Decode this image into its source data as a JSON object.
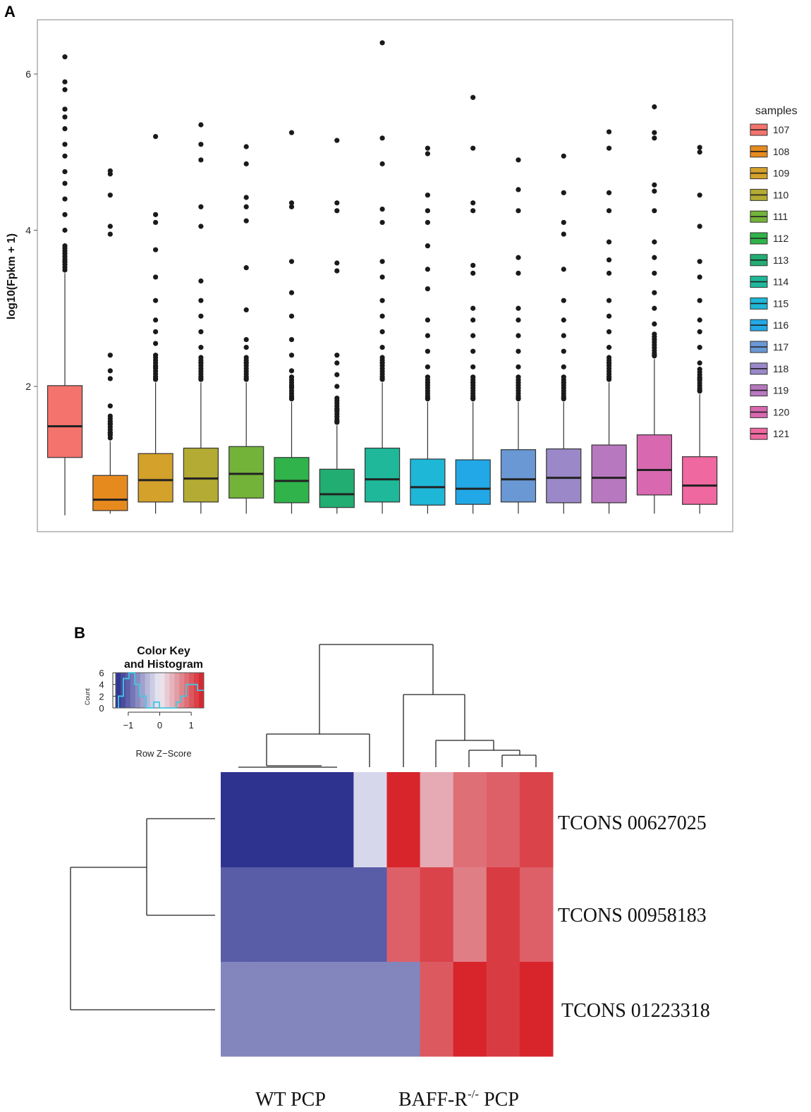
{
  "panels": {
    "a": "A",
    "b": "B"
  },
  "chart_data": [
    {
      "type": "box",
      "ylabel": "log10(Fpkm + 1)",
      "ylim": [
        0.2,
        6.6
      ],
      "yticks": [
        2,
        4,
        6
      ],
      "legend_title": "samples",
      "samples": [
        {
          "name": "107",
          "color": "#f4736c",
          "q1": 1.09,
          "median": 1.49,
          "q3": 2.01,
          "wlo": 0.35,
          "whi": 3.45,
          "outliers": [
            3.6,
            3.8,
            4.0,
            4.2,
            4.4,
            4.6,
            4.75,
            4.95,
            5.1,
            5.3,
            5.45,
            5.55,
            5.8,
            5.9,
            6.22
          ]
        },
        {
          "name": "108",
          "color": "#e78a1e",
          "q1": 0.41,
          "median": 0.55,
          "q3": 0.86,
          "wlo": 0.37,
          "whi": 1.3,
          "outliers": [
            1.4,
            1.52,
            1.75,
            2.1,
            2.2,
            2.4,
            3.95,
            4.05,
            4.45,
            4.72,
            4.76
          ]
        },
        {
          "name": "109",
          "color": "#d4a12a",
          "q1": 0.52,
          "median": 0.8,
          "q3": 1.14,
          "wlo": 0.37,
          "whi": 2.05,
          "outliers": [
            2.1,
            2.25,
            2.4,
            2.55,
            2.7,
            2.85,
            3.1,
            3.4,
            3.75,
            4.1,
            4.2,
            5.2
          ]
        },
        {
          "name": "110",
          "color": "#b3ab33",
          "q1": 0.52,
          "median": 0.82,
          "q3": 1.21,
          "wlo": 0.37,
          "whi": 2.05,
          "outliers": [
            2.1,
            2.3,
            2.5,
            2.7,
            2.9,
            3.1,
            3.35,
            4.05,
            4.3,
            4.9,
            5.1,
            5.35
          ]
        },
        {
          "name": "111",
          "color": "#73b33a",
          "q1": 0.57,
          "median": 0.88,
          "q3": 1.23,
          "wlo": 0.37,
          "whi": 2.05,
          "outliers": [
            2.1,
            2.3,
            2.5,
            2.6,
            2.98,
            3.52,
            4.12,
            4.3,
            4.42,
            4.85,
            5.07
          ]
        },
        {
          "name": "112",
          "color": "#2fb34a",
          "q1": 0.51,
          "median": 0.79,
          "q3": 1.09,
          "wlo": 0.37,
          "whi": 1.8,
          "outliers": [
            1.85,
            2.0,
            2.2,
            2.4,
            2.6,
            2.9,
            3.2,
            3.6,
            4.3,
            4.35,
            5.25
          ]
        },
        {
          "name": "113",
          "color": "#22ad73",
          "q1": 0.45,
          "median": 0.62,
          "q3": 0.94,
          "wlo": 0.37,
          "whi": 1.5,
          "outliers": [
            1.55,
            1.7,
            1.85,
            2.0,
            2.15,
            2.3,
            2.4,
            3.48,
            3.58,
            4.25,
            4.35,
            5.15
          ]
        },
        {
          "name": "114",
          "color": "#1fb89a",
          "q1": 0.52,
          "median": 0.81,
          "q3": 1.21,
          "wlo": 0.37,
          "whi": 2.05,
          "outliers": [
            2.1,
            2.3,
            2.5,
            2.7,
            2.9,
            3.1,
            3.4,
            3.6,
            4.1,
            4.27,
            4.85,
            5.18,
            6.4
          ]
        },
        {
          "name": "115",
          "color": "#1fb7d8",
          "q1": 0.48,
          "median": 0.71,
          "q3": 1.07,
          "wlo": 0.37,
          "whi": 1.8,
          "outliers": [
            1.85,
            2.05,
            2.25,
            2.45,
            2.65,
            2.85,
            3.25,
            3.5,
            3.8,
            4.1,
            4.25,
            4.45,
            4.98,
            5.05
          ]
        },
        {
          "name": "116",
          "color": "#22a8e6",
          "q1": 0.49,
          "median": 0.69,
          "q3": 1.06,
          "wlo": 0.37,
          "whi": 1.8,
          "outliers": [
            1.85,
            2.05,
            2.25,
            2.45,
            2.65,
            2.85,
            3.0,
            3.45,
            3.55,
            4.25,
            4.35,
            5.05,
            5.7
          ]
        },
        {
          "name": "117",
          "color": "#6a98d4",
          "q1": 0.52,
          "median": 0.81,
          "q3": 1.19,
          "wlo": 0.37,
          "whi": 1.8,
          "outliers": [
            1.85,
            2.05,
            2.25,
            2.45,
            2.65,
            2.85,
            3.0,
            3.45,
            3.65,
            4.25,
            4.52,
            4.9
          ]
        },
        {
          "name": "118",
          "color": "#9a88c8",
          "q1": 0.51,
          "median": 0.83,
          "q3": 1.2,
          "wlo": 0.37,
          "whi": 1.8,
          "outliers": [
            1.85,
            2.05,
            2.25,
            2.45,
            2.65,
            2.85,
            3.1,
            3.5,
            3.95,
            4.1,
            4.48,
            4.95
          ]
        },
        {
          "name": "119",
          "color": "#b878c0",
          "q1": 0.51,
          "median": 0.83,
          "q3": 1.25,
          "wlo": 0.37,
          "whi": 2.05,
          "outliers": [
            2.1,
            2.3,
            2.5,
            2.7,
            2.9,
            3.1,
            3.45,
            3.62,
            3.85,
            4.25,
            4.48,
            5.05,
            5.26
          ]
        },
        {
          "name": "120",
          "color": "#d868b0",
          "q1": 0.61,
          "median": 0.93,
          "q3": 1.38,
          "wlo": 0.37,
          "whi": 2.35,
          "outliers": [
            2.4,
            2.6,
            2.8,
            3.0,
            3.2,
            3.45,
            3.65,
            3.85,
            4.25,
            4.5,
            4.58,
            5.18,
            5.25,
            5.58
          ]
        },
        {
          "name": "121",
          "color": "#ef68a0",
          "q1": 0.49,
          "median": 0.73,
          "q3": 1.1,
          "wlo": 0.37,
          "whi": 1.9,
          "outliers": [
            1.95,
            2.1,
            2.3,
            2.5,
            2.7,
            2.85,
            3.1,
            3.4,
            3.6,
            4.05,
            4.45,
            5.0,
            5.06
          ]
        }
      ]
    },
    {
      "type": "heatmap",
      "key_title_1": "Color Key",
      "key_title_2": "and Histogram",
      "key_xlabel": "Row Z−Score",
      "key_ylabel": "Count",
      "key_xticks": [
        "−1",
        "0",
        "1"
      ],
      "key_xtick_values": [
        -1,
        0,
        1
      ],
      "key_yticks": [
        "0",
        "2",
        "4",
        "6"
      ],
      "key_range": [
        -1.4,
        1.4
      ],
      "rows": [
        "TCONS 00627025",
        "TCONS 00958183",
        "TCONS 01223318"
      ],
      "group_labels": [
        "WT PCP",
        "BAFF-R",
        "-/-",
        " PCP"
      ],
      "z": [
        [
          -1.35,
          -1.35,
          -1.35,
          -1.35,
          -0.15,
          1.35,
          0.45,
          0.85,
          0.95,
          1.15
        ],
        [
          -1.05,
          -1.05,
          -1.05,
          -1.05,
          -1.05,
          0.95,
          1.15,
          0.75,
          1.2,
          0.95
        ],
        [
          -0.75,
          -0.75,
          -0.75,
          -0.75,
          -0.75,
          -0.75,
          1.0,
          1.35,
          1.2,
          1.35
        ]
      ]
    }
  ]
}
